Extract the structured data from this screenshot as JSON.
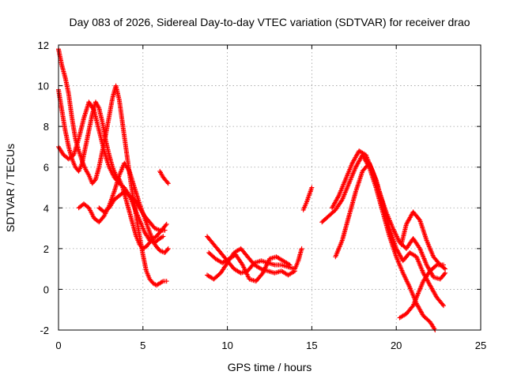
{
  "chart_data": {
    "type": "scatter",
    "title": "Day 083 of 2026, Sidereal Day-to-day VTEC variation (SDTVAR) for receiver drao",
    "xlabel": "GPS time / hours",
    "ylabel": "SDTVAR / TECUs",
    "xlim": [
      0,
      25
    ],
    "ylim": [
      -2,
      12
    ],
    "xticks": [
      "0",
      "5",
      "10",
      "15",
      "20",
      "25"
    ],
    "yticks": [
      "-2",
      "0",
      "2",
      "4",
      "6",
      "8",
      "10",
      "12"
    ],
    "grid": true,
    "marker": "+",
    "color": "#ff0000",
    "series": [
      {
        "name": "s1",
        "points": [
          [
            0.0,
            11.8
          ],
          [
            0.2,
            11.0
          ],
          [
            0.4,
            10.4
          ],
          [
            0.6,
            9.6
          ],
          [
            0.8,
            8.4
          ],
          [
            1.0,
            7.4
          ],
          [
            1.2,
            6.8
          ],
          [
            1.4,
            6.3
          ],
          [
            1.6,
            5.9
          ],
          [
            1.8,
            5.6
          ],
          [
            2.0,
            5.2
          ],
          [
            2.2,
            5.4
          ],
          [
            2.4,
            6.0
          ],
          [
            2.6,
            6.8
          ],
          [
            2.8,
            7.6
          ],
          [
            3.0,
            8.5
          ],
          [
            3.2,
            9.4
          ],
          [
            3.4,
            10.0
          ],
          [
            3.6,
            9.3
          ],
          [
            3.8,
            8.1
          ],
          [
            4.0,
            6.9
          ],
          [
            4.2,
            5.7
          ],
          [
            4.4,
            4.6
          ],
          [
            4.6,
            3.6
          ],
          [
            4.8,
            2.6
          ],
          [
            5.0,
            1.7
          ],
          [
            5.2,
            0.9
          ],
          [
            5.4,
            0.5
          ],
          [
            5.6,
            0.3
          ],
          [
            5.8,
            0.2
          ],
          [
            6.0,
            0.3
          ],
          [
            6.2,
            0.4
          ],
          [
            6.4,
            0.4
          ]
        ]
      },
      {
        "name": "s2",
        "points": [
          [
            0.0,
            9.8
          ],
          [
            0.2,
            8.8
          ],
          [
            0.4,
            7.8
          ],
          [
            0.6,
            7.0
          ],
          [
            0.8,
            6.4
          ],
          [
            1.0,
            6.0
          ],
          [
            1.2,
            5.8
          ],
          [
            1.4,
            6.2
          ],
          [
            1.6,
            7.0
          ],
          [
            1.8,
            7.8
          ],
          [
            2.0,
            8.6
          ],
          [
            2.2,
            9.2
          ],
          [
            2.4,
            8.9
          ],
          [
            2.6,
            8.2
          ],
          [
            2.8,
            7.3
          ],
          [
            3.0,
            6.6
          ],
          [
            3.2,
            6.0
          ],
          [
            3.4,
            5.6
          ],
          [
            3.6,
            5.4
          ],
          [
            3.8,
            5.0
          ],
          [
            4.0,
            4.4
          ],
          [
            4.2,
            3.8
          ],
          [
            4.4,
            3.2
          ],
          [
            4.6,
            2.6
          ],
          [
            4.8,
            2.2
          ],
          [
            5.0,
            2.0
          ],
          [
            5.2,
            2.1
          ],
          [
            5.4,
            2.3
          ],
          [
            5.6,
            2.5
          ],
          [
            5.8,
            2.6
          ],
          [
            6.0,
            2.8
          ],
          [
            6.2,
            3.0
          ],
          [
            6.4,
            3.2
          ]
        ]
      },
      {
        "name": "s3",
        "points": [
          [
            0.0,
            7.0
          ],
          [
            0.3,
            6.6
          ],
          [
            0.6,
            6.4
          ],
          [
            0.9,
            6.6
          ],
          [
            1.2,
            7.4
          ],
          [
            1.5,
            8.4
          ],
          [
            1.8,
            9.2
          ],
          [
            2.1,
            8.8
          ],
          [
            2.4,
            7.8
          ],
          [
            2.7,
            6.8
          ],
          [
            3.0,
            6.0
          ],
          [
            3.3,
            5.5
          ],
          [
            3.6,
            5.2
          ],
          [
            3.9,
            5.0
          ],
          [
            4.2,
            4.6
          ],
          [
            4.5,
            4.0
          ],
          [
            4.8,
            3.4
          ],
          [
            5.1,
            2.8
          ],
          [
            5.4,
            2.4
          ],
          [
            5.7,
            2.3
          ],
          [
            6.0,
            2.5
          ],
          [
            6.2,
            2.6
          ]
        ]
      },
      {
        "name": "s4",
        "points": [
          [
            1.2,
            4.0
          ],
          [
            1.5,
            4.2
          ],
          [
            1.8,
            4.0
          ],
          [
            2.1,
            3.5
          ],
          [
            2.4,
            3.3
          ],
          [
            2.7,
            3.6
          ],
          [
            3.0,
            4.1
          ],
          [
            3.3,
            4.8
          ],
          [
            3.6,
            5.6
          ],
          [
            3.9,
            6.2
          ],
          [
            4.2,
            5.8
          ],
          [
            4.5,
            5.0
          ],
          [
            4.8,
            4.2
          ],
          [
            5.1,
            3.5
          ],
          [
            5.4,
            2.8
          ],
          [
            5.7,
            2.2
          ],
          [
            6.0,
            1.9
          ],
          [
            6.3,
            1.8
          ],
          [
            6.5,
            2.0
          ]
        ]
      },
      {
        "name": "s5",
        "points": [
          [
            2.4,
            4.0
          ],
          [
            2.7,
            3.8
          ],
          [
            3.0,
            4.0
          ],
          [
            3.3,
            4.4
          ],
          [
            3.6,
            4.6
          ],
          [
            3.9,
            4.8
          ],
          [
            4.2,
            4.6
          ],
          [
            4.5,
            4.4
          ],
          [
            4.8,
            4.0
          ],
          [
            5.1,
            3.6
          ],
          [
            5.4,
            3.3
          ],
          [
            5.7,
            3.0
          ],
          [
            6.0,
            2.9
          ],
          [
            6.3,
            2.9
          ]
        ]
      },
      {
        "name": "s6",
        "points": [
          [
            6.0,
            5.8
          ],
          [
            6.2,
            5.5
          ],
          [
            6.4,
            5.3
          ],
          [
            6.5,
            5.2
          ]
        ]
      },
      {
        "name": "s7",
        "points": [
          [
            8.8,
            2.6
          ],
          [
            9.2,
            2.2
          ],
          [
            9.6,
            1.8
          ],
          [
            10.0,
            1.4
          ],
          [
            10.4,
            1.0
          ],
          [
            10.8,
            0.8
          ],
          [
            11.2,
            0.9
          ],
          [
            11.6,
            1.3
          ],
          [
            12.0,
            1.4
          ],
          [
            12.4,
            1.3
          ],
          [
            12.8,
            1.2
          ],
          [
            13.2,
            1.2
          ],
          [
            13.6,
            1.1
          ],
          [
            14.0,
            1.0
          ],
          [
            14.2,
            1.4
          ],
          [
            14.4,
            2.0
          ]
        ]
      },
      {
        "name": "s8",
        "points": [
          [
            8.8,
            0.7
          ],
          [
            9.2,
            0.5
          ],
          [
            9.6,
            0.8
          ],
          [
            10.0,
            1.3
          ],
          [
            10.4,
            1.8
          ],
          [
            10.8,
            2.0
          ],
          [
            11.2,
            1.6
          ],
          [
            11.6,
            1.2
          ],
          [
            12.0,
            1.0
          ],
          [
            12.4,
            0.9
          ],
          [
            12.8,
            0.8
          ],
          [
            13.2,
            0.9
          ],
          [
            13.6,
            0.7
          ],
          [
            14.0,
            0.9
          ]
        ]
      },
      {
        "name": "s9",
        "points": [
          [
            8.9,
            1.8
          ],
          [
            9.3,
            1.5
          ],
          [
            9.7,
            1.3
          ],
          [
            10.1,
            1.5
          ],
          [
            10.5,
            1.7
          ],
          [
            10.9,
            1.2
          ],
          [
            11.3,
            0.5
          ],
          [
            11.7,
            0.4
          ],
          [
            12.1,
            0.8
          ],
          [
            12.5,
            1.5
          ],
          [
            12.9,
            1.6
          ],
          [
            13.3,
            1.4
          ],
          [
            13.7,
            1.2
          ]
        ]
      },
      {
        "name": "s10",
        "points": [
          [
            14.5,
            3.9
          ],
          [
            14.7,
            4.3
          ],
          [
            15.0,
            5.0
          ]
        ]
      },
      {
        "name": "s11",
        "points": [
          [
            15.6,
            3.3
          ],
          [
            16.0,
            3.6
          ],
          [
            16.4,
            3.9
          ],
          [
            16.8,
            4.4
          ],
          [
            17.2,
            5.2
          ],
          [
            17.6,
            6.0
          ],
          [
            18.0,
            6.6
          ],
          [
            18.4,
            6.0
          ],
          [
            18.8,
            5.0
          ],
          [
            19.2,
            3.8
          ],
          [
            19.6,
            2.6
          ],
          [
            20.0,
            1.6
          ],
          [
            20.4,
            0.8
          ],
          [
            20.8,
            0.1
          ],
          [
            21.2,
            -0.7
          ],
          [
            21.6,
            -1.3
          ],
          [
            22.0,
            -1.6
          ],
          [
            22.3,
            -2.0
          ]
        ]
      },
      {
        "name": "s12",
        "points": [
          [
            16.2,
            4.0
          ],
          [
            16.6,
            4.6
          ],
          [
            17.0,
            5.4
          ],
          [
            17.4,
            6.2
          ],
          [
            17.8,
            6.8
          ],
          [
            18.2,
            6.6
          ],
          [
            18.6,
            5.8
          ],
          [
            19.0,
            4.8
          ],
          [
            19.4,
            3.8
          ],
          [
            19.8,
            3.0
          ],
          [
            20.2,
            2.3
          ],
          [
            20.6,
            2.0
          ],
          [
            21.0,
            2.5
          ],
          [
            21.4,
            2.0
          ],
          [
            21.8,
            1.2
          ],
          [
            22.2,
            0.6
          ],
          [
            22.6,
            0.5
          ],
          [
            22.9,
            0.8
          ]
        ]
      },
      {
        "name": "s13",
        "points": [
          [
            16.4,
            1.6
          ],
          [
            16.8,
            2.4
          ],
          [
            17.2,
            3.6
          ],
          [
            17.6,
            4.8
          ],
          [
            18.0,
            5.8
          ],
          [
            18.4,
            6.2
          ],
          [
            18.8,
            5.4
          ],
          [
            19.2,
            4.2
          ],
          [
            19.6,
            3.0
          ],
          [
            20.0,
            2.0
          ],
          [
            20.4,
            1.4
          ],
          [
            20.8,
            1.8
          ],
          [
            21.2,
            1.6
          ],
          [
            21.6,
            0.8
          ],
          [
            22.0,
            0.2
          ],
          [
            22.4,
            -0.4
          ],
          [
            22.8,
            -0.8
          ]
        ]
      },
      {
        "name": "s14",
        "points": [
          [
            20.3,
            2.2
          ],
          [
            20.6,
            3.2
          ],
          [
            21.0,
            3.8
          ],
          [
            21.4,
            3.4
          ],
          [
            21.8,
            2.4
          ],
          [
            22.2,
            1.6
          ],
          [
            22.6,
            1.2
          ],
          [
            22.9,
            1.0
          ]
        ]
      },
      {
        "name": "s15",
        "points": [
          [
            20.2,
            -1.4
          ],
          [
            20.6,
            -1.2
          ],
          [
            21.0,
            -0.8
          ],
          [
            21.3,
            -0.2
          ],
          [
            21.6,
            0.4
          ],
          [
            22.0,
            0.9
          ],
          [
            22.4,
            1.2
          ],
          [
            22.8,
            1.2
          ]
        ]
      }
    ]
  }
}
